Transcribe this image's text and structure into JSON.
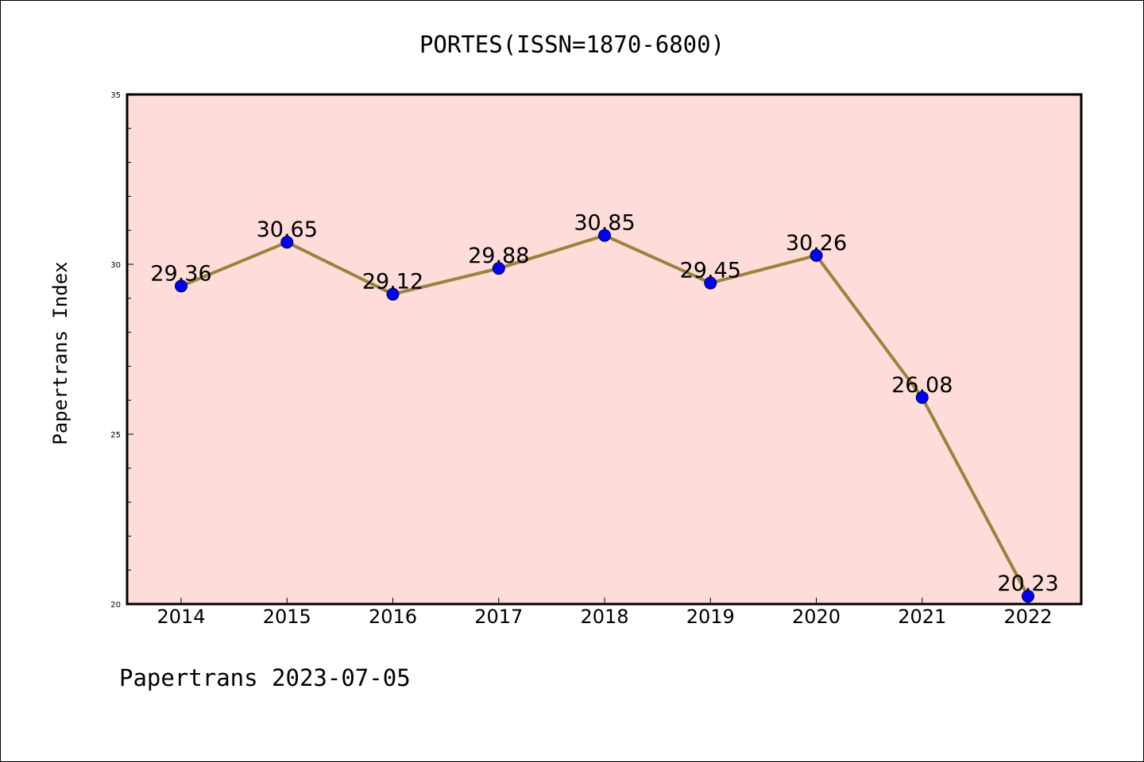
{
  "chart_data": {
    "type": "line",
    "title": "PORTES(ISSN=1870-6800)",
    "xlabel": "",
    "ylabel": "Papertrans Index",
    "footer": "Papertrans 2023-07-05",
    "categories": [
      "2014",
      "2015",
      "2016",
      "2017",
      "2018",
      "2019",
      "2020",
      "2021",
      "2022"
    ],
    "series": [
      {
        "values": [
          29.36,
          30.65,
          29.12,
          29.88,
          30.85,
          29.45,
          30.26,
          26.08,
          20.23
        ],
        "data_labels": [
          "29.36",
          "30.65",
          "29.12",
          "29.88",
          "30.85",
          "29.45",
          "30.26",
          "26.08",
          "20.23"
        ]
      }
    ],
    "ylim": [
      20,
      35
    ],
    "yticks": [
      "20",
      "25",
      "30",
      "35"
    ],
    "grid": false,
    "legend": "none",
    "colors": {
      "plot_background": "#fddcd9",
      "line": "#98843c",
      "marker": "#0000ff"
    }
  }
}
